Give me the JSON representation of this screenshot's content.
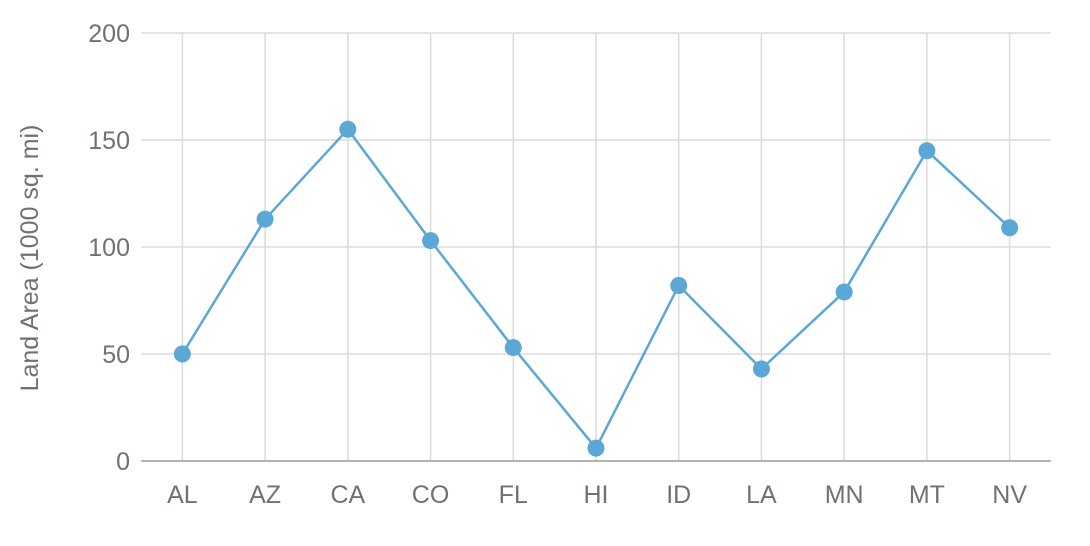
{
  "chart_data": {
    "type": "line",
    "title": "",
    "categories": [
      "AL",
      "AZ",
      "CA",
      "CO",
      "FL",
      "HI",
      "ID",
      "LA",
      "MN",
      "MT",
      "NV"
    ],
    "values": [
      50,
      113,
      155,
      103,
      53,
      6,
      82,
      43,
      79,
      145,
      109
    ],
    "series": [
      {
        "name": "Land Area",
        "values": [
          50,
          113,
          155,
          103,
          53,
          6,
          82,
          43,
          79,
          145,
          109
        ]
      }
    ],
    "xlabel": "",
    "ylabel": "Land Area (1000 sq. mi)",
    "ylim": [
      0,
      200
    ],
    "yticks": [
      0,
      50,
      100,
      150,
      200
    ],
    "ytick_labels": [
      "0",
      "50",
      "100",
      "150",
      "200"
    ],
    "grid": "horizontal-and-vertical",
    "legend": "none",
    "marker": "circle",
    "colors": {
      "line": "#5BA7D6",
      "marker": "#5BA7D6",
      "gridline": "#DBDBDB",
      "axis_line": "#B3B3B3",
      "label_text": "#6D7278"
    }
  }
}
